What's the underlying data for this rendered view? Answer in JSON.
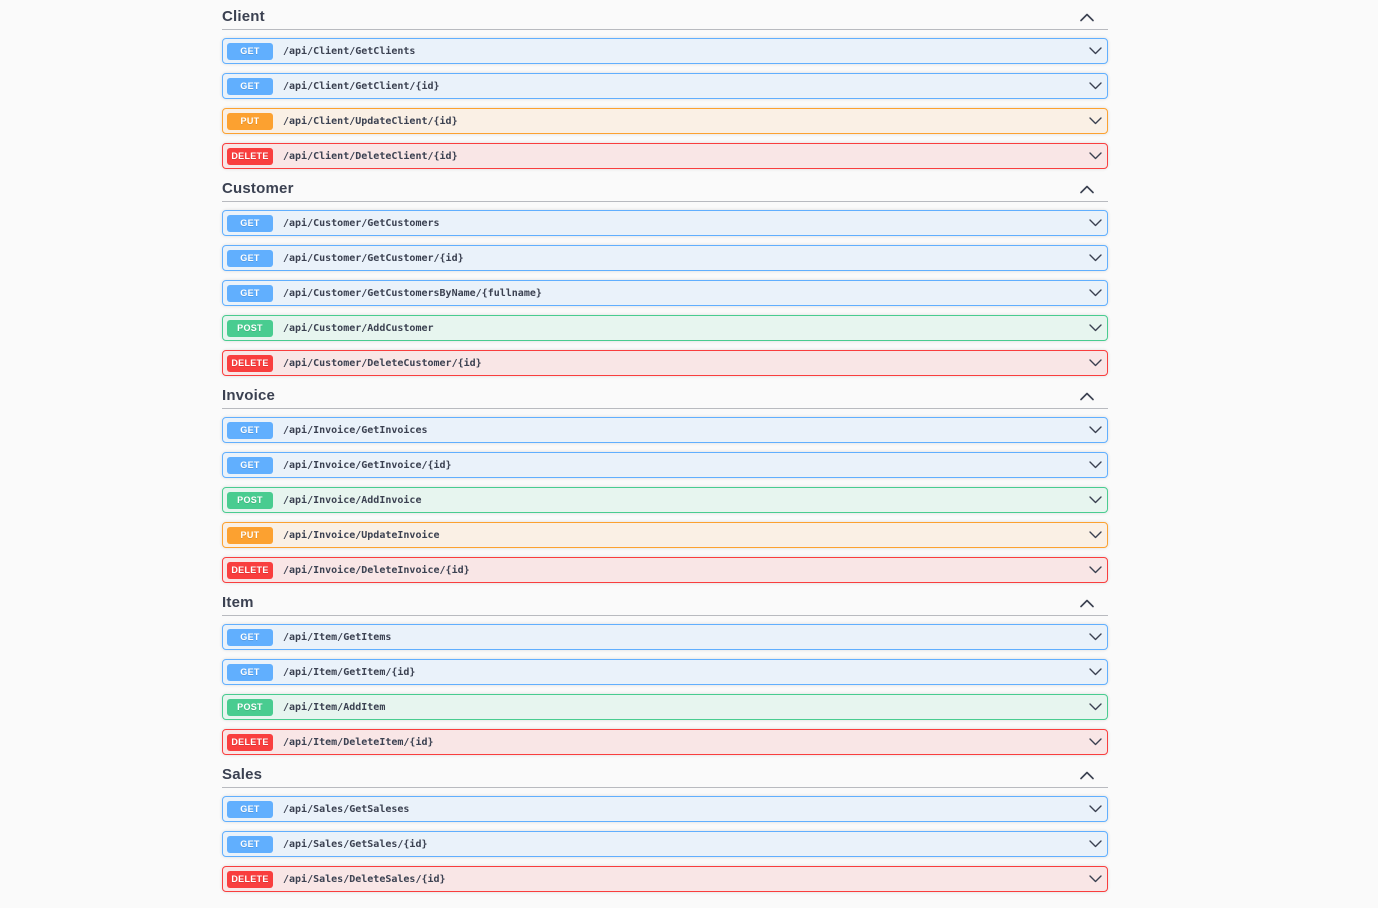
{
  "colors": {
    "page_background": "#fafafa",
    "heading_text": "#3b4151",
    "path_text": "#3b4151",
    "header_divider": "rgba(59,65,81,0.35)",
    "methods": {
      "GET": {
        "badge": "#61affe",
        "row_bg": "rgba(97,175,254,0.1)",
        "border": "#61affe"
      },
      "POST": {
        "badge": "#49cc90",
        "row_bg": "rgba(73,204,144,0.1)",
        "border": "#49cc90"
      },
      "PUT": {
        "badge": "#fca130",
        "row_bg": "rgba(252,161,48,0.1)",
        "border": "#fca130"
      },
      "DELETE": {
        "badge": "#f93e3e",
        "row_bg": "rgba(249,62,62,0.1)",
        "border": "#f93e3e"
      }
    }
  },
  "icons": {
    "section_collapse": "chevron-up-icon",
    "row_expand": "chevron-down-icon"
  },
  "sections": [
    {
      "name": "Client",
      "endpoints": [
        {
          "method": "GET",
          "path": "/api/Client/GetClients"
        },
        {
          "method": "GET",
          "path": "/api/Client/GetClient/{id}"
        },
        {
          "method": "PUT",
          "path": "/api/Client/UpdateClient/{id}"
        },
        {
          "method": "DELETE",
          "path": "/api/Client/DeleteClient/{id}"
        }
      ]
    },
    {
      "name": "Customer",
      "endpoints": [
        {
          "method": "GET",
          "path": "/api/Customer/GetCustomers"
        },
        {
          "method": "GET",
          "path": "/api/Customer/GetCustomer/{id}"
        },
        {
          "method": "GET",
          "path": "/api/Customer/GetCustomersByName/{fullname}"
        },
        {
          "method": "POST",
          "path": "/api/Customer/AddCustomer"
        },
        {
          "method": "DELETE",
          "path": "/api/Customer/DeleteCustomer/{id}"
        }
      ]
    },
    {
      "name": "Invoice",
      "endpoints": [
        {
          "method": "GET",
          "path": "/api/Invoice/GetInvoices"
        },
        {
          "method": "GET",
          "path": "/api/Invoice/GetInvoice/{id}"
        },
        {
          "method": "POST",
          "path": "/api/Invoice/AddInvoice"
        },
        {
          "method": "PUT",
          "path": "/api/Invoice/UpdateInvoice"
        },
        {
          "method": "DELETE",
          "path": "/api/Invoice/DeleteInvoice/{id}"
        }
      ]
    },
    {
      "name": "Item",
      "endpoints": [
        {
          "method": "GET",
          "path": "/api/Item/GetItems"
        },
        {
          "method": "GET",
          "path": "/api/Item/GetItem/{id}"
        },
        {
          "method": "POST",
          "path": "/api/Item/AddItem"
        },
        {
          "method": "DELETE",
          "path": "/api/Item/DeleteItem/{id}"
        }
      ]
    },
    {
      "name": "Sales",
      "endpoints": [
        {
          "method": "GET",
          "path": "/api/Sales/GetSaleses"
        },
        {
          "method": "GET",
          "path": "/api/Sales/GetSales/{id}"
        },
        {
          "method": "DELETE",
          "path": "/api/Sales/DeleteSales/{id}"
        }
      ]
    }
  ]
}
